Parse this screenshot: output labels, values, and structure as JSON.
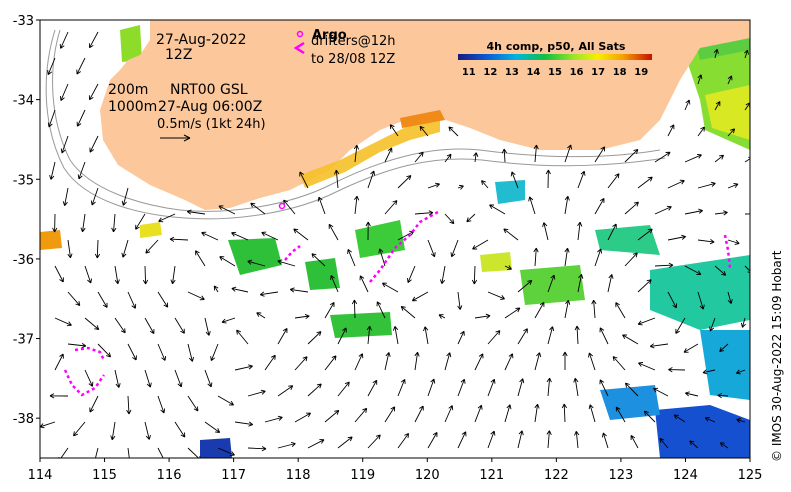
{
  "map": {
    "date_label": "27-Aug-2022",
    "time_label": "12Z",
    "contour_label_a": "200m",
    "contour_label_b": "1000m",
    "altimetry_label": "NRT00 GSL",
    "altimetry_time": "27-Aug 06:00Z",
    "scale_label": "0.5m/s (1kt 24h)",
    "argo_label": "Argo",
    "drifters_label": "drifters@12h",
    "drifters_to": "to 28/08 12Z",
    "colorbar_title": "4h comp, p50, All Sats",
    "colorbar_ticks": [
      "11",
      "12",
      "13",
      "14",
      "15",
      "16",
      "17",
      "18",
      "19"
    ],
    "credit": "© IMOS 30-Aug-2022 15:09 Hobart",
    "x_ticks": [
      "114",
      "115",
      "116",
      "117",
      "118",
      "119",
      "120",
      "121",
      "122",
      "123",
      "124",
      "125"
    ],
    "y_ticks": [
      "-33",
      "-34",
      "-35",
      "-36",
      "-37",
      "-38"
    ],
    "lon_range": [
      114,
      125
    ],
    "lat_range": [
      -38.5,
      -33
    ],
    "sst_range": [
      11,
      19.5
    ],
    "colors": {
      "land": "#fbc79b",
      "argo": "#ff00ff",
      "arrow": "#000000",
      "contour": "#999999"
    }
  }
}
